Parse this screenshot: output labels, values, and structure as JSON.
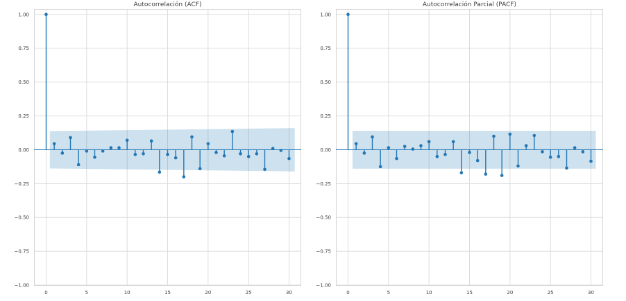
{
  "figure": {
    "background": "#ffffff",
    "palette": {
      "stem_color": "#2277b4",
      "band_color": "rgba(31,119,180,0.22)",
      "grid_color": "#dcdcdc",
      "border_color": "#d4d4d4",
      "tick_text_color": "#3a3a3a",
      "title_text_color": "#3f3f3f"
    }
  },
  "chart_data": [
    {
      "type": "scatter",
      "variant": "stem-acf",
      "title": "Autocorrelación (ACF)",
      "xlabel": "",
      "ylabel": "",
      "x": [
        0,
        1,
        2,
        3,
        4,
        5,
        6,
        7,
        8,
        9,
        10,
        11,
        12,
        13,
        14,
        15,
        16,
        17,
        18,
        19,
        20,
        21,
        22,
        23,
        24,
        25,
        26,
        27,
        28,
        29,
        30
      ],
      "values": [
        1.0,
        0.045,
        -0.025,
        0.09,
        -0.11,
        -0.01,
        -0.055,
        -0.01,
        0.015,
        0.015,
        0.07,
        -0.035,
        -0.03,
        0.065,
        -0.165,
        -0.035,
        -0.06,
        -0.2,
        0.095,
        -0.14,
        0.045,
        -0.02,
        -0.045,
        0.135,
        -0.03,
        -0.05,
        -0.03,
        -0.145,
        0.01,
        -0.005,
        -0.065
      ],
      "confidence_band": {
        "x_start": 0.45,
        "x_end": 30.7,
        "halfwidth_start": 0.138,
        "halfwidth_end": 0.16
      },
      "xlim": [
        -1.5,
        31.5
      ],
      "ylim": [
        -1.005,
        1.04
      ],
      "xticks": {
        "values": [
          0,
          5,
          10,
          15,
          20,
          25,
          30
        ],
        "labels": [
          "0",
          "5",
          "10",
          "15",
          "20",
          "25",
          "30"
        ]
      },
      "yticks": {
        "values": [
          1,
          0.75,
          0.5,
          0.25,
          0,
          -0.25,
          -0.5,
          -0.75,
          -1
        ],
        "labels": [
          "1.00",
          "0.75",
          "0.50",
          "0.25",
          "0.00",
          "−0.25",
          "−0.50",
          "−0.75",
          "−1.00"
        ]
      },
      "grid": true,
      "legend": null
    },
    {
      "type": "scatter",
      "variant": "stem-pacf",
      "title": "Autocorrelación Parcial (PACF)",
      "xlabel": "",
      "ylabel": "",
      "x": [
        0,
        1,
        2,
        3,
        4,
        5,
        6,
        7,
        8,
        9,
        10,
        11,
        12,
        13,
        14,
        15,
        16,
        17,
        18,
        19,
        20,
        21,
        22,
        23,
        24,
        25,
        26,
        27,
        28,
        29,
        30
      ],
      "values": [
        1.0,
        0.045,
        -0.025,
        0.095,
        -0.125,
        0.015,
        -0.065,
        0.025,
        0.005,
        0.03,
        0.06,
        -0.05,
        -0.035,
        0.06,
        -0.17,
        -0.02,
        -0.08,
        -0.18,
        0.1,
        -0.19,
        0.115,
        -0.12,
        0.03,
        0.105,
        -0.015,
        -0.055,
        -0.05,
        -0.135,
        0.015,
        -0.015,
        -0.085
      ],
      "confidence_band": {
        "x_start": 0.55,
        "x_end": 30.6,
        "halfwidth_start": 0.14,
        "halfwidth_end": 0.14
      },
      "xlim": [
        -1.5,
        31.5
      ],
      "ylim": [
        -1.005,
        1.04
      ],
      "xticks": {
        "values": [
          0,
          5,
          10,
          15,
          20,
          25,
          30
        ],
        "labels": [
          "0",
          "5",
          "10",
          "15",
          "20",
          "25",
          "30"
        ]
      },
      "yticks": {
        "values": [
          1,
          0.75,
          0.5,
          0.25,
          0,
          -0.25,
          -0.5,
          -0.75,
          -1
        ],
        "labels": [
          "1.00",
          "0.75",
          "0.50",
          "0.25",
          "0.00",
          "−0.25",
          "−0.50",
          "−0.75",
          "−1.00"
        ]
      },
      "grid": true,
      "legend": null
    }
  ]
}
